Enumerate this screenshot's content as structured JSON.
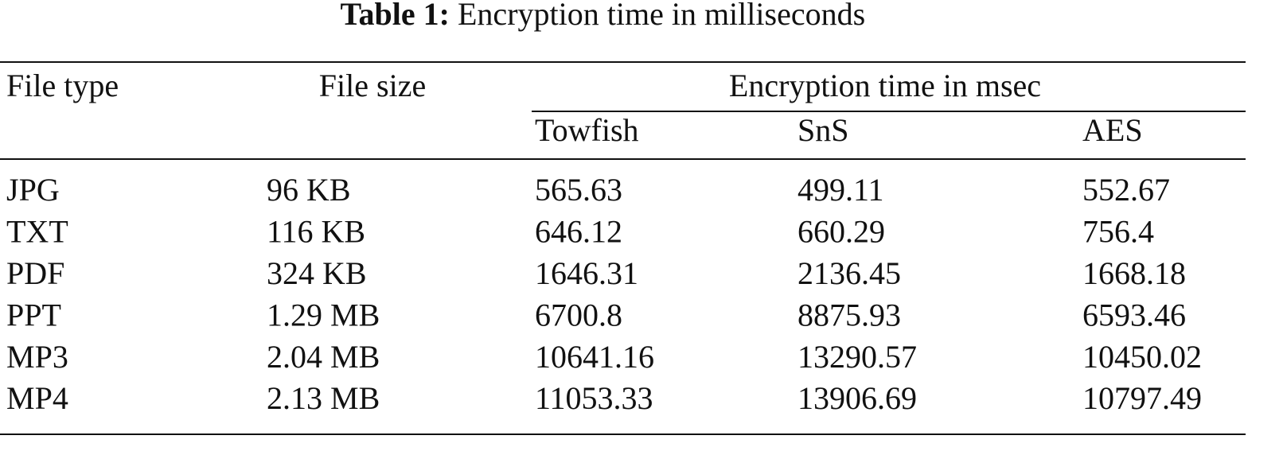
{
  "caption": {
    "label": "Table 1:",
    "text": "Encryption time in milliseconds"
  },
  "table": {
    "header": {
      "file_type": "File type",
      "file_size": "File size",
      "group": "Encryption time in msec",
      "methods": [
        "Towfish",
        "SnS",
        "AES"
      ]
    },
    "rows": [
      [
        "JPG",
        "96 KB",
        "565.63",
        "499.11",
        "552.67"
      ],
      [
        "TXT",
        "116 KB",
        "646.12",
        "660.29",
        "756.4"
      ],
      [
        "PDF",
        "324 KB",
        "1646.31",
        "2136.45",
        "1668.18"
      ],
      [
        "PPT",
        "1.29 MB",
        "6700.8",
        "8875.93",
        "6593.46"
      ],
      [
        "MP3",
        "2.04 MB",
        "10641.16",
        "13290.57",
        "10450.02"
      ],
      [
        "MP4",
        "2.13 MB",
        "11053.33",
        "13906.69",
        "10797.49"
      ]
    ]
  }
}
